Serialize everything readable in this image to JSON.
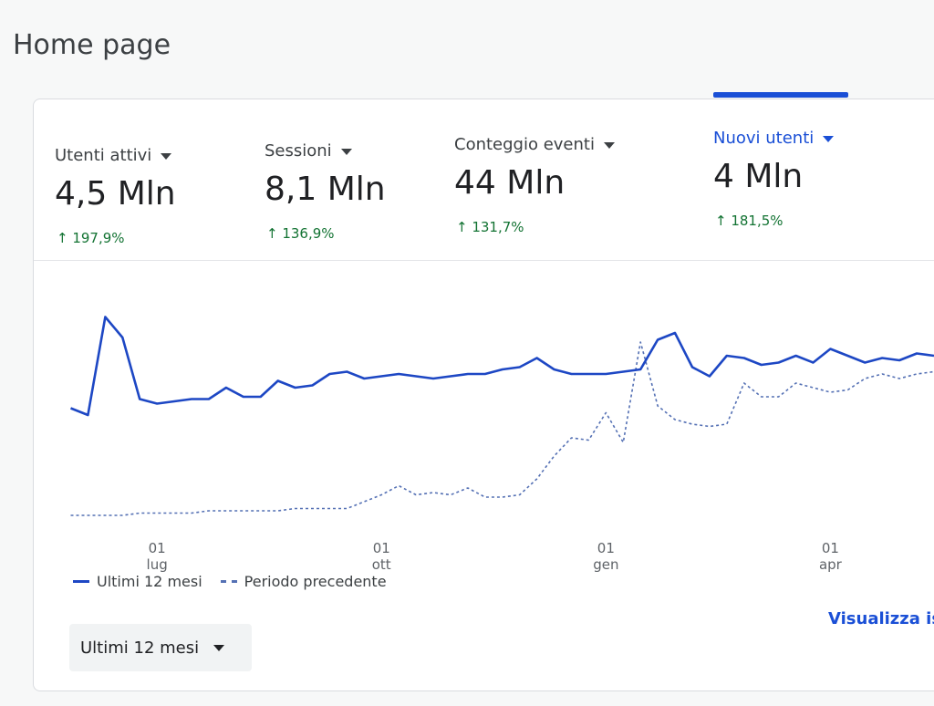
{
  "header": {
    "title": "Home page"
  },
  "metrics": [
    {
      "label": "Utenti attivi",
      "value": "4,5 Mln",
      "change": "↑ 197,9%"
    },
    {
      "label": "Sessioni",
      "value": "8,1 Mln",
      "change": "↑ 136,9%"
    },
    {
      "label": "Conteggio eventi",
      "value": "44 Mln",
      "change": "↑ 131,7%"
    },
    {
      "label": "Nuovi utenti",
      "value": "4 Mln",
      "change": "↑ 181,5%"
    }
  ],
  "chart_data": {
    "type": "line",
    "categories": [
      null,
      null,
      null,
      null,
      null,
      "01\nlug",
      null,
      null,
      null,
      null,
      null,
      null,
      null,
      null,
      null,
      null,
      null,
      null,
      "01\nott",
      null,
      null,
      null,
      null,
      null,
      null,
      null,
      null,
      null,
      null,
      null,
      null,
      "01\ngen",
      null,
      null,
      null,
      null,
      null,
      null,
      null,
      null,
      null,
      null,
      null,
      null,
      "01\napr",
      null,
      null,
      null,
      null,
      null,
      null
    ],
    "series": [
      {
        "name": "Ultimi 12 mesi",
        "color": "#1d47c4",
        "dash": false,
        "values": [
          53,
          50,
          93,
          84,
          57,
          55,
          56,
          57,
          57,
          62,
          58,
          58,
          65,
          62,
          63,
          68,
          69,
          66,
          67,
          68,
          67,
          66,
          67,
          68,
          68,
          70,
          71,
          75,
          70,
          68,
          68,
          68,
          69,
          70,
          83,
          86,
          71,
          67,
          76,
          75,
          72,
          73,
          76,
          73,
          79,
          76,
          73,
          75,
          74,
          77,
          76
        ]
      },
      {
        "name": "Periodo precedente",
        "color": "#5470b4",
        "dash": true,
        "values": [
          6,
          6,
          6,
          6,
          7,
          7,
          7,
          7,
          8,
          8,
          8,
          8,
          8,
          9,
          9,
          9,
          9,
          12,
          15,
          19,
          15,
          16,
          15,
          18,
          14,
          14,
          15,
          22,
          32,
          40,
          39,
          51,
          38,
          82,
          54,
          48,
          46,
          45,
          46,
          64,
          58,
          58,
          64,
          62,
          60,
          61,
          66,
          68,
          66,
          68,
          69
        ]
      }
    ],
    "ylim": [
      0,
      100
    ]
  },
  "footer": {
    "range_selector": "Ultimi 12 mesi",
    "link": "Visualizza is"
  }
}
